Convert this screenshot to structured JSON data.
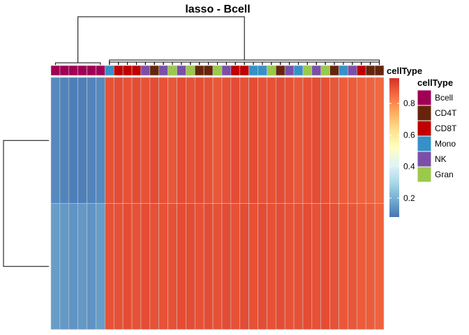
{
  "chart_data": {
    "type": "heatmap",
    "title": "lasso - Bcell",
    "rows": 2,
    "columns": [
      {
        "cellType": "Bcell",
        "values": [
          0.12,
          0.16
        ]
      },
      {
        "cellType": "Bcell",
        "values": [
          0.11,
          0.15
        ]
      },
      {
        "cellType": "Bcell",
        "values": [
          0.1,
          0.14
        ]
      },
      {
        "cellType": "Bcell",
        "values": [
          0.1,
          0.15
        ]
      },
      {
        "cellType": "Bcell",
        "values": [
          0.11,
          0.14
        ]
      },
      {
        "cellType": "Bcell",
        "values": [
          0.12,
          0.16
        ]
      },
      {
        "cellType": "Mono",
        "values": [
          0.9,
          0.9
        ]
      },
      {
        "cellType": "CD8T",
        "values": [
          0.91,
          0.9
        ]
      },
      {
        "cellType": "CD8T",
        "values": [
          0.9,
          0.91
        ]
      },
      {
        "cellType": "CD8T",
        "values": [
          0.91,
          0.9
        ]
      },
      {
        "cellType": "NK",
        "values": [
          0.9,
          0.91
        ]
      },
      {
        "cellType": "CD4T",
        "values": [
          0.91,
          0.9
        ]
      },
      {
        "cellType": "NK",
        "values": [
          0.9,
          0.9
        ]
      },
      {
        "cellType": "Gran",
        "values": [
          0.89,
          0.9
        ]
      },
      {
        "cellType": "NK",
        "values": [
          0.91,
          0.91
        ]
      },
      {
        "cellType": "Gran",
        "values": [
          0.9,
          0.91
        ]
      },
      {
        "cellType": "CD4T",
        "values": [
          0.91,
          0.9
        ]
      },
      {
        "cellType": "CD4T",
        "values": [
          0.9,
          0.91
        ]
      },
      {
        "cellType": "Gran",
        "values": [
          0.89,
          0.9
        ]
      },
      {
        "cellType": "NK",
        "values": [
          0.9,
          0.91
        ]
      },
      {
        "cellType": "CD8T",
        "values": [
          0.91,
          0.9
        ]
      },
      {
        "cellType": "CD8T",
        "values": [
          0.9,
          0.91
        ]
      },
      {
        "cellType": "Mono",
        "values": [
          0.91,
          0.9
        ]
      },
      {
        "cellType": "Mono",
        "values": [
          0.9,
          0.91
        ]
      },
      {
        "cellType": "Gran",
        "values": [
          0.9,
          0.9
        ]
      },
      {
        "cellType": "CD4T",
        "values": [
          0.91,
          0.91
        ]
      },
      {
        "cellType": "NK",
        "values": [
          0.9,
          0.9
        ]
      },
      {
        "cellType": "Mono",
        "values": [
          0.89,
          0.9
        ]
      },
      {
        "cellType": "Gran",
        "values": [
          0.9,
          0.91
        ]
      },
      {
        "cellType": "NK",
        "values": [
          0.91,
          0.9
        ]
      },
      {
        "cellType": "Gran",
        "values": [
          0.9,
          0.91
        ]
      },
      {
        "cellType": "CD4T",
        "values": [
          0.89,
          0.9
        ]
      },
      {
        "cellType": "Mono",
        "values": [
          0.88,
          0.89
        ]
      },
      {
        "cellType": "NK",
        "values": [
          0.88,
          0.89
        ]
      },
      {
        "cellType": "CD8T",
        "values": [
          0.87,
          0.88
        ]
      },
      {
        "cellType": "CD4T",
        "values": [
          0.87,
          0.88
        ]
      },
      {
        "cellType": "CD4T",
        "values": [
          0.86,
          0.87
        ]
      }
    ],
    "colorbar": {
      "min": 0.08,
      "max": 0.96,
      "ticks": [
        0.2,
        0.4,
        0.6,
        0.8
      ],
      "colors": [
        "#4575b4",
        "#74add1",
        "#abd9e9",
        "#e0f3f8",
        "#ffffbf",
        "#fee090",
        "#fdae61",
        "#f46d43",
        "#d73027"
      ]
    },
    "annotation": {
      "name": "cellType",
      "legend_title": "cellType",
      "categories": [
        "Bcell",
        "CD4T",
        "CD8T",
        "Mono",
        "NK",
        "Gran"
      ],
      "colors": {
        "Bcell": "#a00054",
        "CD4T": "#66250a",
        "CD8T": "#c00000",
        "Mono": "#3591c8",
        "NK": "#7b4fa8",
        "Gran": "#9ac94b"
      }
    },
    "grid": true,
    "legend_position": "right"
  }
}
